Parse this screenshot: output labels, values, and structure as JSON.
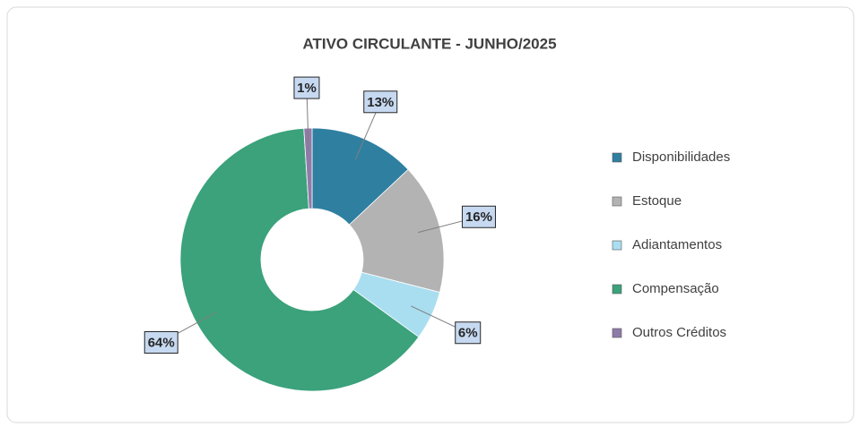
{
  "chart_data": {
    "type": "pie",
    "donut": true,
    "title": "ATIVO CIRCULANTE  - JUNHO/2025",
    "categories": [
      "Disponibilidades",
      "Estoque",
      "Adiantamentos",
      "Compensação",
      "Outros Créditos"
    ],
    "values": [
      13,
      16,
      6,
      64,
      1
    ],
    "value_labels": [
      "13%",
      "16%",
      "6%",
      "64%",
      "1%"
    ],
    "colors": [
      "#2f7fa1",
      "#b3b3b3",
      "#a9def0",
      "#3ba27b",
      "#8f7ba8"
    ],
    "legend": "right"
  }
}
